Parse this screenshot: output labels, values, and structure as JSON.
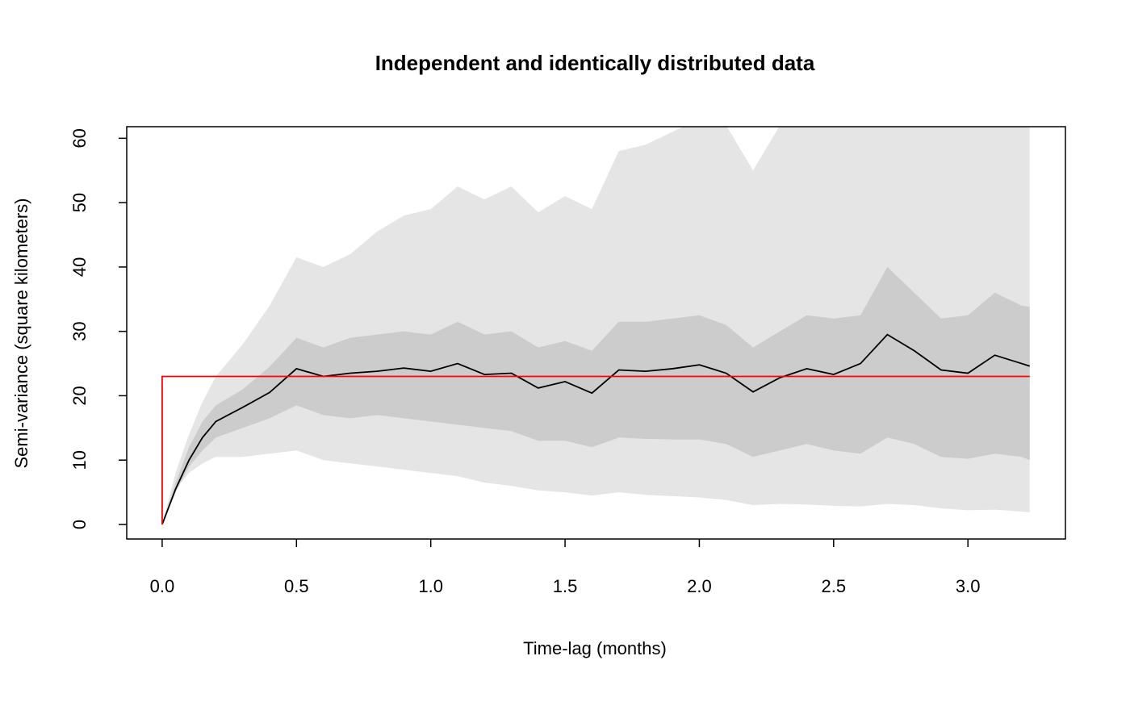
{
  "chart_data": {
    "type": "line",
    "title": "Independent and identically distributed data",
    "xlabel": "Time-lag (months)",
    "ylabel": "Semi-variance (square kilometers)",
    "xlim": [
      -0.132,
      3.363
    ],
    "ylim": [
      -2.26,
      61.8
    ],
    "xticks": [
      {
        "value": 0,
        "label": "0.0"
      },
      0.5,
      {
        "value": 1,
        "label": "1.0"
      },
      1.5,
      {
        "value": 2,
        "label": "2.0"
      },
      2.5,
      {
        "value": 3,
        "label": "3.0"
      }
    ],
    "yticks": [
      0,
      10,
      20,
      30,
      40,
      50,
      60
    ],
    "x": [
      0,
      0.05,
      0.1,
      0.15,
      0.2,
      0.3,
      0.4,
      0.5,
      0.6,
      0.7,
      0.8,
      0.9,
      1.0,
      1.1,
      1.2,
      1.3,
      1.4,
      1.5,
      1.6,
      1.7,
      1.8,
      1.9,
      2.0,
      2.1,
      2.2,
      2.3,
      2.4,
      2.5,
      2.6,
      2.7,
      2.8,
      2.9,
      3.0,
      3.1,
      3.2,
      3.23
    ],
    "bands": [
      {
        "color": "#e5e5e5",
        "upper": [
          0,
          8,
          14,
          19,
          23,
          28,
          34,
          41.5,
          40,
          42,
          45.5,
          48,
          49,
          52.5,
          50.5,
          52.5,
          48.5,
          51,
          49,
          58,
          59,
          61,
          63,
          62,
          55,
          62,
          65,
          65,
          65,
          65,
          65,
          65,
          65,
          65,
          65,
          65
        ],
        "lower": [
          0,
          5.5,
          8,
          9.5,
          10.5,
          10.5,
          11,
          11.5,
          10,
          9.5,
          9,
          8.5,
          8,
          7.5,
          6.5,
          6,
          5.3,
          5,
          4.5,
          5,
          4.6,
          4.4,
          4.2,
          3.8,
          3,
          3.2,
          3.1,
          2.9,
          2.8,
          3.2,
          3,
          2.5,
          2.2,
          2.3,
          2,
          1.9
        ]
      },
      {
        "color": "#cccccc",
        "upper": [
          0,
          6.5,
          12,
          16,
          18.5,
          21,
          24.5,
          29,
          27.5,
          29,
          29.5,
          30,
          29.5,
          31.5,
          29.5,
          30,
          27.5,
          28.5,
          27,
          31.5,
          31.5,
          32,
          32.5,
          31,
          27.5,
          30,
          32.5,
          32,
          32.5,
          40,
          36,
          32,
          32.5,
          36,
          34,
          33.8
        ],
        "lower": [
          0,
          5,
          9,
          11.5,
          13.5,
          15,
          16.5,
          18.5,
          17,
          16.5,
          17,
          16.5,
          16,
          15.5,
          15,
          14.5,
          13,
          13,
          12,
          13.5,
          13.3,
          13.2,
          13.2,
          12.5,
          10.5,
          11.5,
          12.5,
          11.5,
          11,
          13.5,
          12.5,
          10.5,
          10.2,
          11,
          10.5,
          10
        ]
      }
    ],
    "series": [
      {
        "color": "#000000",
        "values": [
          0,
          5.5,
          10,
          13.5,
          16,
          18.2,
          20.5,
          24.2,
          23,
          23.5,
          23.8,
          24.3,
          23.8,
          25,
          23.3,
          23.5,
          21.2,
          22.2,
          20.4,
          24,
          23.8,
          24.2,
          24.8,
          23.5,
          20.6,
          22.8,
          24.2,
          23.3,
          25,
          29.5,
          27,
          24,
          23.5,
          26.3,
          25,
          24.6
        ]
      }
    ],
    "model": {
      "color": "#ff0000",
      "x": [
        0,
        0,
        3.23
      ],
      "values": [
        0,
        23,
        23
      ]
    }
  }
}
